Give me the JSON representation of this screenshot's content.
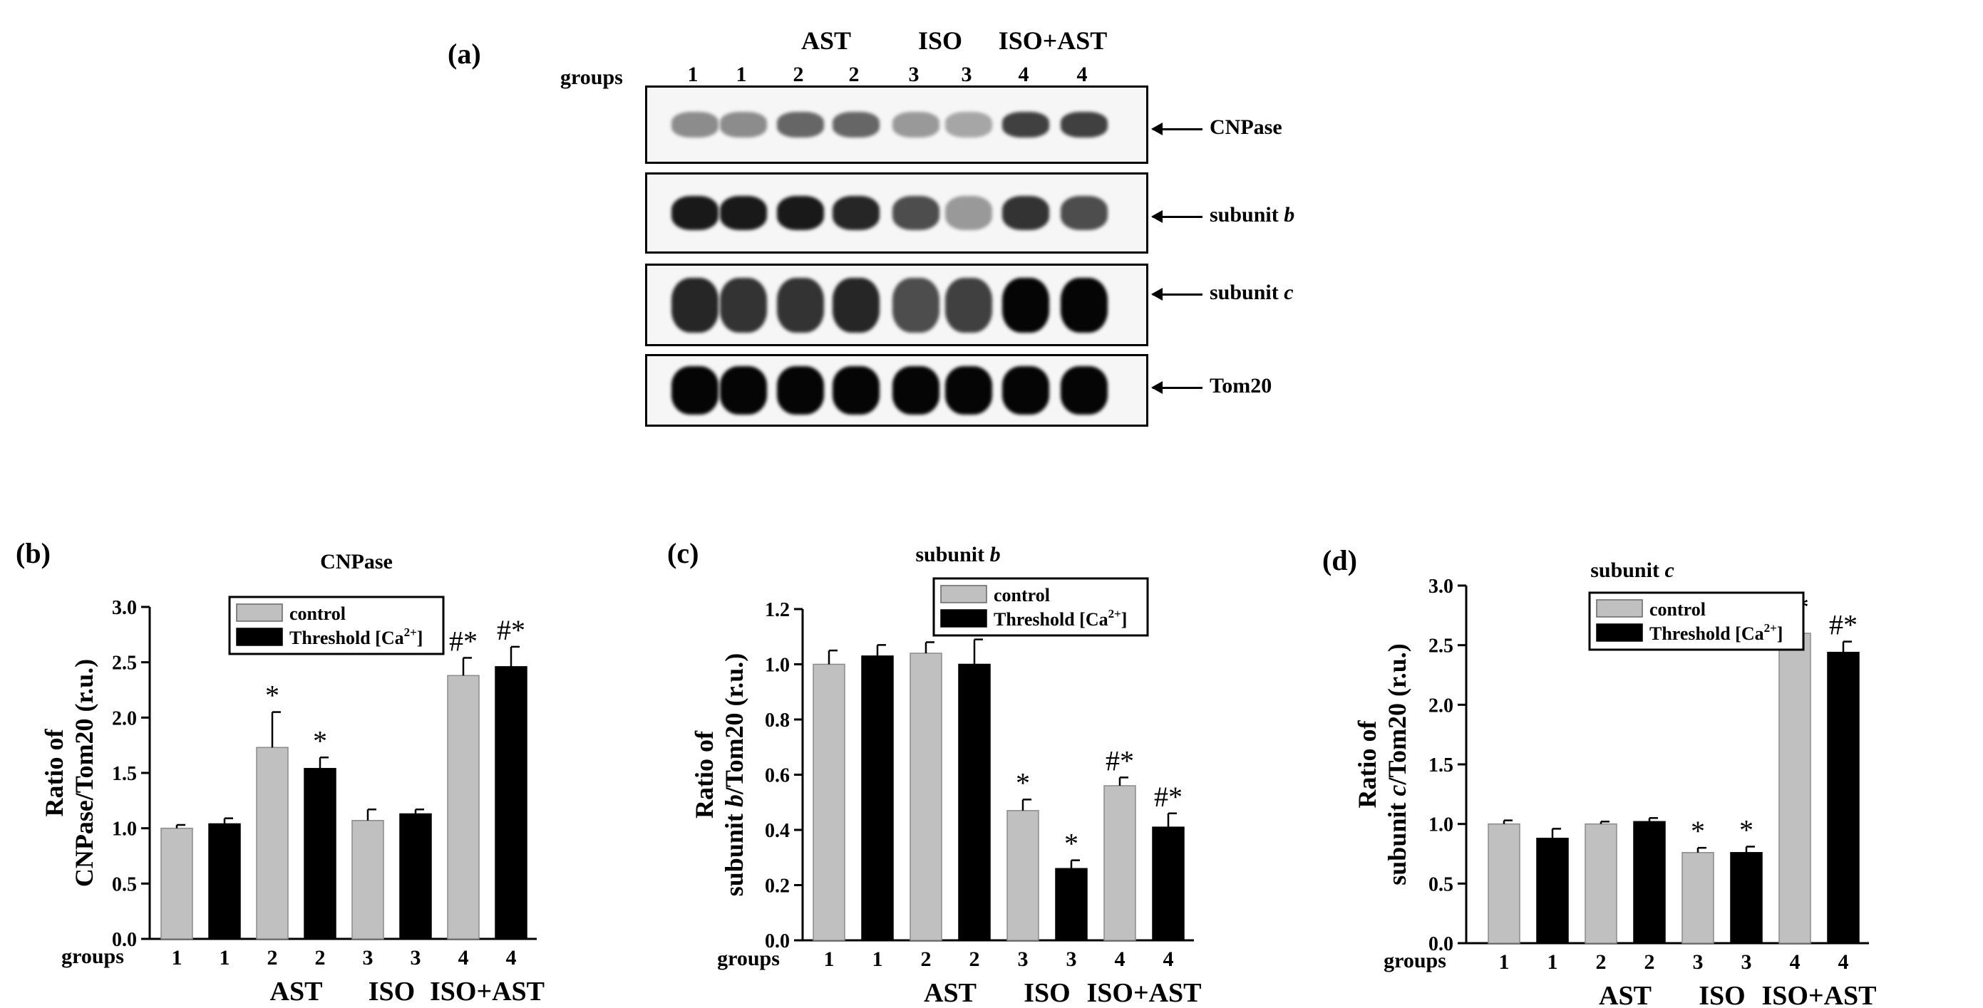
{
  "panel_a": {
    "label": "(a)",
    "groups_word": "groups",
    "lane_numbers": [
      "1",
      "1",
      "2",
      "2",
      "3",
      "3",
      "4",
      "4"
    ],
    "group_headers": [
      "AST",
      "ISO",
      "ISO+AST"
    ],
    "blots": [
      {
        "name": "CNPase",
        "band_intensity": [
          0.45,
          0.45,
          0.6,
          0.6,
          0.4,
          0.35,
          0.75,
          0.75
        ],
        "thickness": 0.35
      },
      {
        "name": "subunit ",
        "italic": "b",
        "band_intensity": [
          0.9,
          0.9,
          0.9,
          0.85,
          0.7,
          0.4,
          0.8,
          0.7
        ],
        "thickness": 0.45
      },
      {
        "name": "subunit ",
        "italic": "c",
        "band_intensity": [
          0.85,
          0.8,
          0.8,
          0.85,
          0.7,
          0.75,
          0.98,
          0.98
        ],
        "thickness": 0.7
      },
      {
        "name": "Tom20",
        "band_intensity": [
          0.98,
          0.98,
          0.98,
          0.98,
          0.98,
          0.98,
          0.98,
          0.98
        ],
        "thickness": 0.7
      }
    ]
  },
  "legend": {
    "control": "control",
    "threshold_prefix": "Threshold [Ca",
    "threshold_sup": "2+",
    "threshold_suffix": "]"
  },
  "colors": {
    "control": "#c0c0c0",
    "threshold": "#000000"
  },
  "chart_data": [
    {
      "type": "bar",
      "panel_label": "(b)",
      "title": "CNPase",
      "title_italic": "",
      "ylabel_line1": "Ratio of",
      "ylabel_line2": "CNPase/Tom20 (r.u.)",
      "ylabel_italic": "",
      "ylim": [
        0,
        3.0
      ],
      "yticks": [
        "0.0",
        "0.5",
        "1.0",
        "1.5",
        "2.0",
        "2.5",
        "3.0"
      ],
      "ytick_values": [
        0,
        0.5,
        1.0,
        1.5,
        2.0,
        2.5,
        3.0
      ],
      "categories": [
        "1",
        "1",
        "2",
        "2",
        "3",
        "3",
        "4",
        "4"
      ],
      "series_types": [
        "control",
        "threshold",
        "control",
        "threshold",
        "control",
        "threshold",
        "control",
        "threshold"
      ],
      "values": [
        1.0,
        1.04,
        1.73,
        1.54,
        1.07,
        1.13,
        2.38,
        2.46
      ],
      "errors": [
        0.03,
        0.05,
        0.32,
        0.1,
        0.1,
        0.04,
        0.16,
        0.18
      ],
      "annotations": [
        "",
        "",
        "*",
        "*",
        "",
        "",
        "#*",
        "#*"
      ],
      "groups_word": "groups",
      "group_labels": [
        "AST",
        "ISO",
        "ISO+AST"
      ]
    },
    {
      "type": "bar",
      "panel_label": "(c)",
      "title": "subunit ",
      "title_italic": "b",
      "ylabel_line1": "Ratio of",
      "ylabel_line2": "subunit b/Tom20 (r.u.)",
      "ylabel_italic": "b",
      "ylim": [
        0,
        1.2
      ],
      "yticks": [
        "0.0",
        "0.2",
        "0.4",
        "0.6",
        "0.8",
        "1.0",
        "1.2"
      ],
      "ytick_values": [
        0,
        0.2,
        0.4,
        0.6,
        0.8,
        1.0,
        1.2
      ],
      "categories": [
        "1",
        "1",
        "2",
        "2",
        "3",
        "3",
        "4",
        "4"
      ],
      "series_types": [
        "control",
        "threshold",
        "control",
        "threshold",
        "control",
        "threshold",
        "control",
        "threshold"
      ],
      "values": [
        1.0,
        1.03,
        1.04,
        1.0,
        0.47,
        0.26,
        0.56,
        0.41
      ],
      "errors": [
        0.05,
        0.04,
        0.04,
        0.09,
        0.04,
        0.03,
        0.03,
        0.05
      ],
      "annotations": [
        "",
        "",
        "",
        "",
        "*",
        "*",
        "#*",
        "#*"
      ],
      "groups_word": "groups",
      "group_labels": [
        "AST",
        "ISO",
        "ISO+AST"
      ]
    },
    {
      "type": "bar",
      "panel_label": "(d)",
      "title": "subunit ",
      "title_italic": "c",
      "ylabel_line1": "Ratio of",
      "ylabel_line2": "subunit c/Tom20 (r.u.)",
      "ylabel_italic": "c",
      "ylim": [
        0,
        3.0
      ],
      "yticks": [
        "0.0",
        "0.5",
        "1.0",
        "1.5",
        "2.0",
        "2.5",
        "3.0"
      ],
      "ytick_values": [
        0,
        0.5,
        1.0,
        1.5,
        2.0,
        2.5,
        3.0
      ],
      "categories": [
        "1",
        "1",
        "2",
        "2",
        "3",
        "3",
        "4",
        "4"
      ],
      "series_types": [
        "control",
        "threshold",
        "control",
        "threshold",
        "control",
        "threshold",
        "control",
        "threshold"
      ],
      "values": [
        1.0,
        0.88,
        1.0,
        1.02,
        0.76,
        0.76,
        2.6,
        2.44
      ],
      "errors": [
        0.03,
        0.08,
        0.02,
        0.03,
        0.04,
        0.05,
        0.08,
        0.09
      ],
      "annotations": [
        "",
        "",
        "",
        "",
        "*",
        "*",
        "#*",
        "#*"
      ],
      "groups_word": "groups",
      "group_labels": [
        "AST",
        "ISO",
        "ISO+AST"
      ]
    }
  ]
}
